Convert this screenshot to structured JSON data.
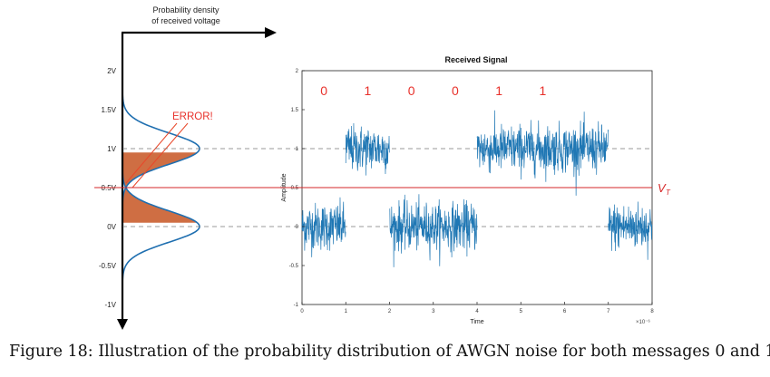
{
  "caption": "Figure 18: Illustration of the probability distribution of AWGN noise for both messages 0 and 1",
  "left_panel": {
    "axis_title_line1": "Probability density",
    "axis_title_line2": "of received voltage",
    "voltage_labels": [
      "2V",
      "1.5V",
      "1V",
      "0.5V",
      "0V",
      "-0.5V",
      "-1V"
    ],
    "voltage_values": [
      2,
      1.5,
      1,
      0.5,
      0,
      -0.5,
      -1
    ],
    "error_label": "ERROR!",
    "error_color": "#e8312b",
    "curve_color": "#1f6fb0",
    "gaussian_means": [
      0,
      1
    ],
    "gaussian_sigma": 0.2,
    "threshold": 0.5
  },
  "chart_data": {
    "type": "line",
    "title": "Received Signal",
    "xlabel": "Time",
    "ylabel": "Amplitude",
    "x_multiplier_label": "×10⁻⁶",
    "xlim": [
      0,
      8
    ],
    "ylim": [
      -1,
      2
    ],
    "xticks": [
      "0",
      "1",
      "2",
      "3",
      "4",
      "5",
      "6",
      "7",
      "8"
    ],
    "yticks": [
      "-1",
      "-0.5",
      "0",
      "0.5",
      "1",
      "1.5",
      "2"
    ],
    "bits": [
      "0",
      "1",
      "0",
      "0",
      "1",
      "1"
    ],
    "bit_color": "#e8312b",
    "signal_color": "#1f77b4",
    "noise_sigma": 0.15,
    "levels": [
      {
        "x_start": 0,
        "x_end": 1,
        "level": 0
      },
      {
        "x_start": 1,
        "x_end": 2,
        "level": 1
      },
      {
        "x_start": 2,
        "x_end": 4,
        "level": 0
      },
      {
        "x_start": 4,
        "x_end": 7,
        "level": 1
      },
      {
        "x_start": 7,
        "x_end": 8,
        "level": 0
      }
    ],
    "threshold": {
      "value": 0.5,
      "label": "V_T",
      "color": "#d62728"
    },
    "reference_lines": [
      0,
      1
    ]
  }
}
